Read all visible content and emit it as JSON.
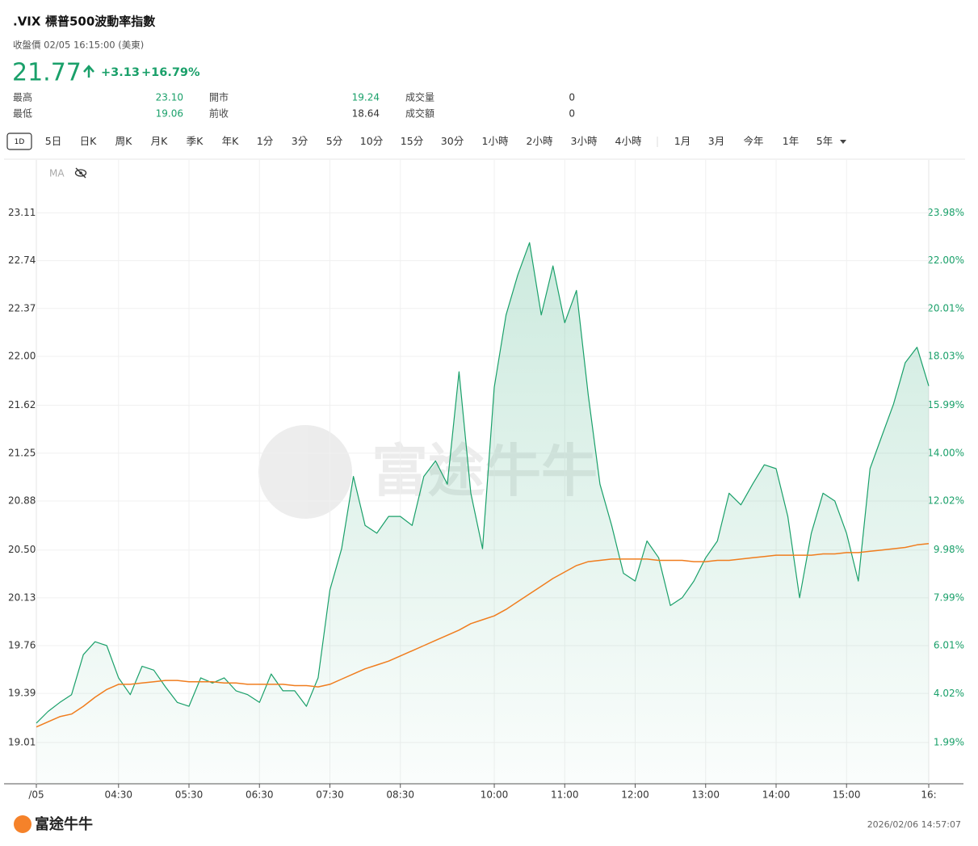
{
  "header": {
    "symbol": ".VIX",
    "name": "標普500波動率指數",
    "status": "收盤價 02/05 16:15:00 (美東)",
    "price": "21.77",
    "change": "+3.13",
    "change_pct": "+16.79%",
    "stats": [
      [
        {
          "label": "最高",
          "value": "23.10"
        },
        {
          "label": "開市",
          "value": "19.24"
        },
        {
          "label": "成交量",
          "value": "0"
        }
      ],
      [
        {
          "label": "最低",
          "value": "19.06"
        },
        {
          "label": "前收",
          "value": "18.64"
        },
        {
          "label": "成交額",
          "value": "0"
        }
      ]
    ]
  },
  "tabs": [
    "1D",
    "5日",
    "日K",
    "周K",
    "月K",
    "季K",
    "年K",
    "1分",
    "3分",
    "5分",
    "10分",
    "15分",
    "30分",
    "1小時",
    "2小時",
    "3小時",
    "4小時",
    "1月",
    "3月",
    "今年",
    "1年",
    "5年"
  ],
  "chart_data": {
    "type": "line",
    "ma_label": "MA",
    "watermark": "富途牛牛",
    "categories": [
      "/05",
      null,
      null,
      null,
      null,
      null,
      null,
      "04:30",
      null,
      null,
      null,
      null,
      null,
      "05:30",
      null,
      null,
      null,
      null,
      null,
      "06:30",
      null,
      null,
      null,
      null,
      null,
      "07:30",
      null,
      null,
      null,
      null,
      null,
      "08:30",
      null,
      null,
      null,
      null,
      null,
      null,
      null,
      "10:00",
      null,
      null,
      null,
      null,
      null,
      "11:00",
      null,
      null,
      null,
      null,
      null,
      "12:00",
      null,
      null,
      null,
      null,
      null,
      "13:00",
      null,
      null,
      null,
      null,
      null,
      "14:00",
      null,
      null,
      null,
      null,
      null,
      "15:00",
      null,
      null,
      null,
      null,
      null,
      null,
      "16:"
    ],
    "series": [
      {
        "color": "#1aa06a",
        "fill": true,
        "values": [
          19.16,
          19.25,
          19.32,
          19.38,
          19.69,
          19.79,
          19.76,
          19.51,
          19.38,
          19.6,
          19.57,
          19.44,
          19.32,
          19.29,
          19.51,
          19.47,
          19.51,
          19.41,
          19.38,
          19.32,
          19.54,
          19.41,
          19.41,
          19.29,
          19.51,
          20.19,
          20.51,
          21.07,
          20.69,
          20.63,
          20.76,
          20.76,
          20.69,
          21.07,
          21.19,
          21.01,
          21.88,
          20.94,
          20.51,
          21.76,
          22.32,
          22.63,
          22.88,
          22.32,
          22.7,
          22.26,
          22.51,
          21.7,
          21.01,
          20.69,
          20.32,
          20.26,
          20.57,
          20.44,
          20.07,
          20.13,
          20.26,
          20.44,
          20.57,
          20.94,
          20.85,
          21.01,
          21.16,
          21.13,
          20.76,
          20.13,
          20.63,
          20.94,
          20.88,
          20.63,
          20.26,
          21.13,
          21.38,
          21.63,
          21.95,
          22.07,
          21.77
        ]
      },
      {
        "color": "#f07d1e",
        "fill": false,
        "values": [
          19.13,
          19.17,
          19.21,
          19.23,
          19.29,
          19.36,
          19.42,
          19.46,
          19.46,
          19.47,
          19.48,
          19.49,
          19.49,
          19.48,
          19.48,
          19.48,
          19.47,
          19.47,
          19.46,
          19.46,
          19.46,
          19.46,
          19.45,
          19.45,
          19.44,
          19.46,
          19.5,
          19.54,
          19.58,
          19.61,
          19.64,
          19.68,
          19.72,
          19.76,
          19.8,
          19.84,
          19.88,
          19.93,
          19.96,
          19.99,
          20.04,
          20.1,
          20.16,
          20.22,
          20.28,
          20.33,
          20.38,
          20.41,
          20.42,
          20.43,
          20.43,
          20.43,
          20.43,
          20.42,
          20.42,
          20.42,
          20.41,
          20.41,
          20.42,
          20.42,
          20.43,
          20.44,
          20.45,
          20.46,
          20.46,
          20.46,
          20.46,
          20.47,
          20.47,
          20.48,
          20.48,
          20.49,
          20.5,
          20.51,
          20.52,
          20.54,
          20.55
        ]
      }
    ],
    "ylim": [
      18.69,
      23.52
    ],
    "yticks": [
      23.11,
      22.74,
      22.37,
      {
        "value": 22,
        "label": "22.00"
      },
      21.62,
      21.25,
      20.88,
      {
        "value": 20.5,
        "label": "20.50"
      },
      20.13,
      19.76,
      19.39,
      19.01
    ],
    "y2lim": [
      0.27,
      26.18
    ],
    "y2ticks": [
      {
        "value": 23.98,
        "label": "23.98%"
      },
      {
        "value": 22,
        "label": "22.00%"
      },
      {
        "value": 20.01,
        "label": "20.01%"
      },
      {
        "value": 18.03,
        "label": "18.03%"
      },
      {
        "value": 15.99,
        "label": "15.99%"
      },
      {
        "value": 14,
        "label": "14.00%"
      },
      {
        "value": 12.02,
        "label": "12.02%"
      },
      {
        "value": 9.98,
        "label": "9.98%"
      },
      {
        "value": 7.99,
        "label": "7.99%"
      },
      {
        "value": 6.01,
        "label": "6.01%"
      },
      {
        "value": 4.02,
        "label": "4.02%"
      },
      {
        "value": 1.99,
        "label": "1.99%"
      }
    ],
    "grid": true
  },
  "footer": {
    "logo": "富途牛牛",
    "timestamp": "2026/02/06 14:57:07"
  }
}
